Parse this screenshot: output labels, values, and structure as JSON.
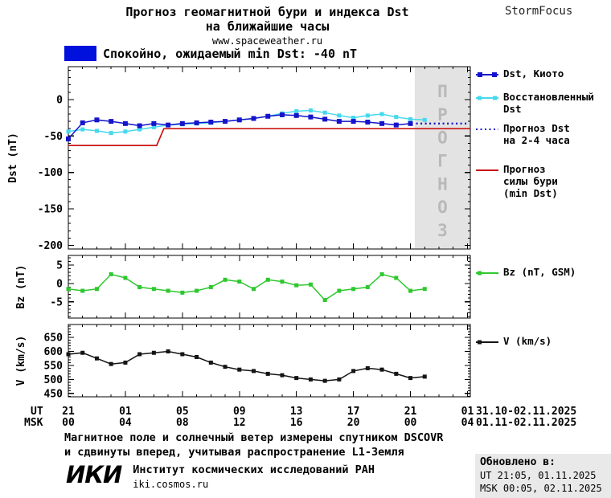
{
  "header": {
    "title_line1": "Прогноз геомагнитной бури и индекса Dst",
    "title_line2": "на ближайшие часы",
    "site": "www.spaceweather.ru",
    "brand": "StormFocus"
  },
  "status": {
    "label": "Спокойно, ожидаемый min Dst: -40 nT"
  },
  "colors": {
    "status_blue": "#0010dd",
    "dst_blue": "#1414cc",
    "recon_cyan": "#45d9ee",
    "forecast_red": "#cc1414",
    "bz_green": "#2ec82e",
    "v_black": "#141414",
    "forecast_bg": "#e3e3e3",
    "forecast_text": "#b9b9b9"
  },
  "legend": {
    "dst_kyoto": "Dst, Киото",
    "reconstructed": "Восстановленный\nDst",
    "forecast_dst": "Прогноз Dst\nна 2-4 часа",
    "forecast_storm": "Прогноз\nсилы бури\n(min Dst)",
    "bz": "Bz (nT, GSM)",
    "v": "V (km/s)"
  },
  "x_axis": {
    "xlim": [
      0,
      28.2
    ],
    "tick_hours": [
      0,
      4,
      8,
      12,
      16,
      20,
      24,
      28
    ],
    "ut_row_label": "UT",
    "msk_row_label": "MSK",
    "ut_labels": [
      "21",
      "01",
      "05",
      "09",
      "13",
      "17",
      "21",
      "01"
    ],
    "msk_labels": [
      "00",
      "04",
      "08",
      "12",
      "16",
      "20",
      "00",
      "04"
    ],
    "ut_dates": "31.10-02.11.2025",
    "msk_dates": "01.11-02.11.2025"
  },
  "chart_data": [
    {
      "type": "line",
      "title": "Прогноз геомагнитной бури и индекса Dst на ближайшие часы",
      "ylabel": "Dst (nT)",
      "ylim": [
        -205,
        45
      ],
      "yticks": [
        0,
        -50,
        -100,
        -150,
        -200
      ],
      "yminor": 10,
      "forecast_region": {
        "x_start": 24.3,
        "x_end": 28.2,
        "label": "ПРОГНОЗ"
      },
      "series": [
        {
          "name": "Прогноз силы бури (min Dst)",
          "color": "#cc1414",
          "width": 1.7,
          "x": [
            0,
            6.2,
            6.7,
            28.2
          ],
          "y": [
            -63,
            -63,
            -40,
            -40
          ]
        },
        {
          "name": "Восстановленный Dst",
          "color": "#45d9ee",
          "marker": "square",
          "marker_size": 5,
          "x": [
            0,
            1,
            2,
            3,
            4,
            5,
            6,
            7,
            8,
            9,
            10,
            11,
            12,
            13,
            14,
            15,
            16,
            17,
            18,
            19,
            20,
            21,
            22,
            23,
            24,
            25
          ],
          "y": [
            -44,
            -41,
            -43,
            -46,
            -44,
            -41,
            -38,
            -35,
            -34,
            -33,
            -32,
            -30,
            -28,
            -26,
            -23,
            -19,
            -16,
            -15,
            -18,
            -22,
            -25,
            -22,
            -20,
            -24,
            -27,
            -28
          ]
        },
        {
          "name": "Dst, Киото",
          "color": "#1414cc",
          "marker": "square",
          "marker_size": 6,
          "x": [
            0,
            1,
            2,
            3,
            4,
            5,
            6,
            7,
            8,
            9,
            10,
            11,
            12,
            13,
            14,
            15,
            16,
            17,
            18,
            19,
            20,
            21,
            22,
            23,
            24
          ],
          "y": [
            -54,
            -32,
            -28,
            -30,
            -33,
            -36,
            -33,
            -35,
            -33,
            -32,
            -31,
            -30,
            -28,
            -26,
            -23,
            -21,
            -22,
            -24,
            -27,
            -30,
            -30,
            -31,
            -33,
            -35,
            -33
          ]
        },
        {
          "name": "Прогноз Dst на 2-4 часа",
          "color": "#1414cc",
          "style": "dotted",
          "width": 2.4,
          "x": [
            24.4,
            28.0
          ],
          "y": [
            -33,
            -33
          ]
        }
      ]
    },
    {
      "type": "line",
      "ylabel": "Bz (nT)",
      "ylim": [
        -9.4,
        7.6
      ],
      "yticks": [
        5,
        0,
        -5
      ],
      "yminor": 1,
      "series": [
        {
          "name": "Bz (nT, GSM)",
          "color": "#2ec82e",
          "marker": "square",
          "marker_size": 5,
          "x": [
            0,
            1,
            2,
            3,
            4,
            5,
            6,
            7,
            8,
            9,
            10,
            11,
            12,
            13,
            14,
            15,
            16,
            17,
            18,
            19,
            20,
            21,
            22,
            23,
            24,
            25
          ],
          "y": [
            -1.5,
            -2,
            -1.5,
            2.5,
            1.5,
            -1,
            -1.5,
            -2,
            -2.5,
            -2,
            -1,
            1,
            0.5,
            -1.5,
            1,
            0.5,
            -0.5,
            -0.3,
            -4.5,
            -2,
            -1.5,
            -1,
            2.5,
            1.5,
            -2,
            -1.5
          ]
        }
      ]
    },
    {
      "type": "line",
      "ylabel": "V (km/s)",
      "ylim": [
        438,
        696
      ],
      "yticks": [
        650,
        600,
        550,
        500,
        450
      ],
      "yminor": 10,
      "series": [
        {
          "name": "V (km/s)",
          "color": "#141414",
          "marker": "square",
          "marker_size": 5,
          "x": [
            0,
            1,
            2,
            3,
            4,
            5,
            6,
            7,
            8,
            9,
            10,
            11,
            12,
            13,
            14,
            15,
            16,
            17,
            18,
            19,
            20,
            21,
            22,
            23,
            24,
            25
          ],
          "y": [
            590,
            595,
            575,
            555,
            560,
            590,
            595,
            600,
            590,
            580,
            560,
            545,
            535,
            530,
            520,
            515,
            505,
            500,
            495,
            500,
            530,
            540,
            535,
            520,
            505,
            510
          ]
        }
      ]
    }
  ],
  "footer": {
    "note": "Магнитное поле и солнечный ветер измерены спутником DSCOVR\nи сдвинуты вперед, учитывая распространение L1-Земля",
    "logo": "ИКИ",
    "institute": "Институт космических исследований РАН",
    "institute_site": "iki.cosmos.ru",
    "updated_label": "Обновлено в:",
    "updated_ut": "UT  21:05, 01.11.2025",
    "updated_msk": "MSK 00:05, 02.11.2025"
  }
}
